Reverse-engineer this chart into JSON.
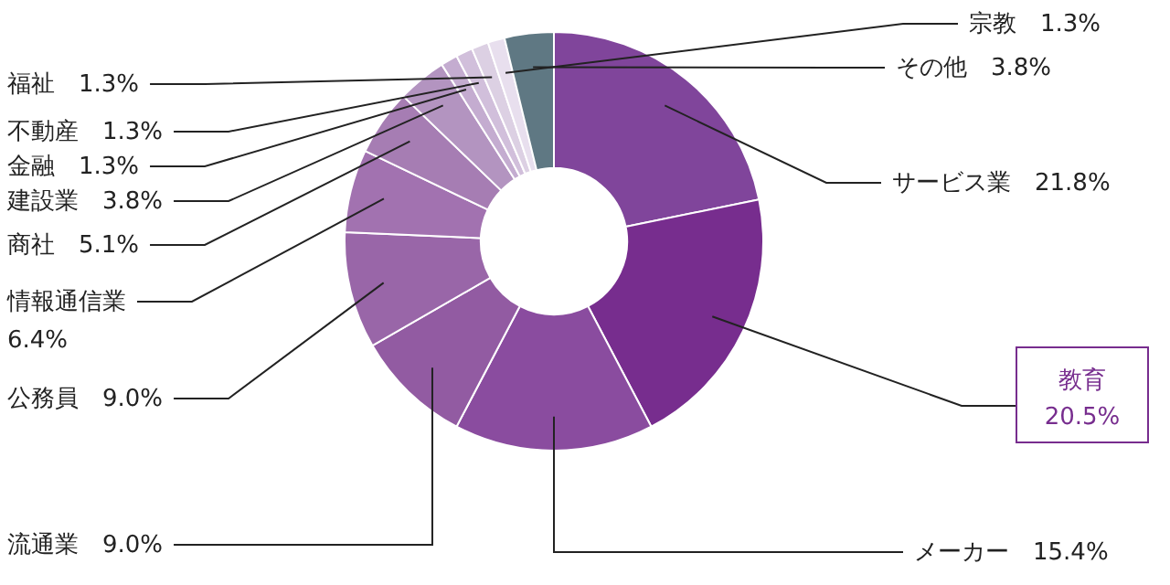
{
  "chart_data": {
    "type": "donut",
    "categories": [
      "サービス業",
      "教育",
      "メーカー",
      "流通業",
      "公務員",
      "情報通信業",
      "商社",
      "建設業",
      "金融",
      "不動産",
      "福祉",
      "宗教",
      "その他"
    ],
    "values": [
      21.8,
      20.5,
      15.4,
      9.0,
      9.0,
      6.4,
      5.1,
      3.8,
      1.3,
      1.3,
      1.3,
      1.3,
      3.8
    ],
    "value_labels": [
      "21.8%",
      "20.5%",
      "15.4%",
      "9.0%",
      "9.0%",
      "6.4%",
      "5.1%",
      "3.8%",
      "1.3%",
      "1.3%",
      "1.3%",
      "1.3%",
      "3.8%"
    ],
    "colors": [
      "#80459b",
      "#772d8e",
      "#8a4c9f",
      "#925ba2",
      "#9966a8",
      "#a272b0",
      "#a67db3",
      "#b394c0",
      "#c4acd0",
      "#d1bfdb",
      "#dcd0e3",
      "#e8dfee",
      "#5f7883"
    ],
    "legend": false
  }
}
